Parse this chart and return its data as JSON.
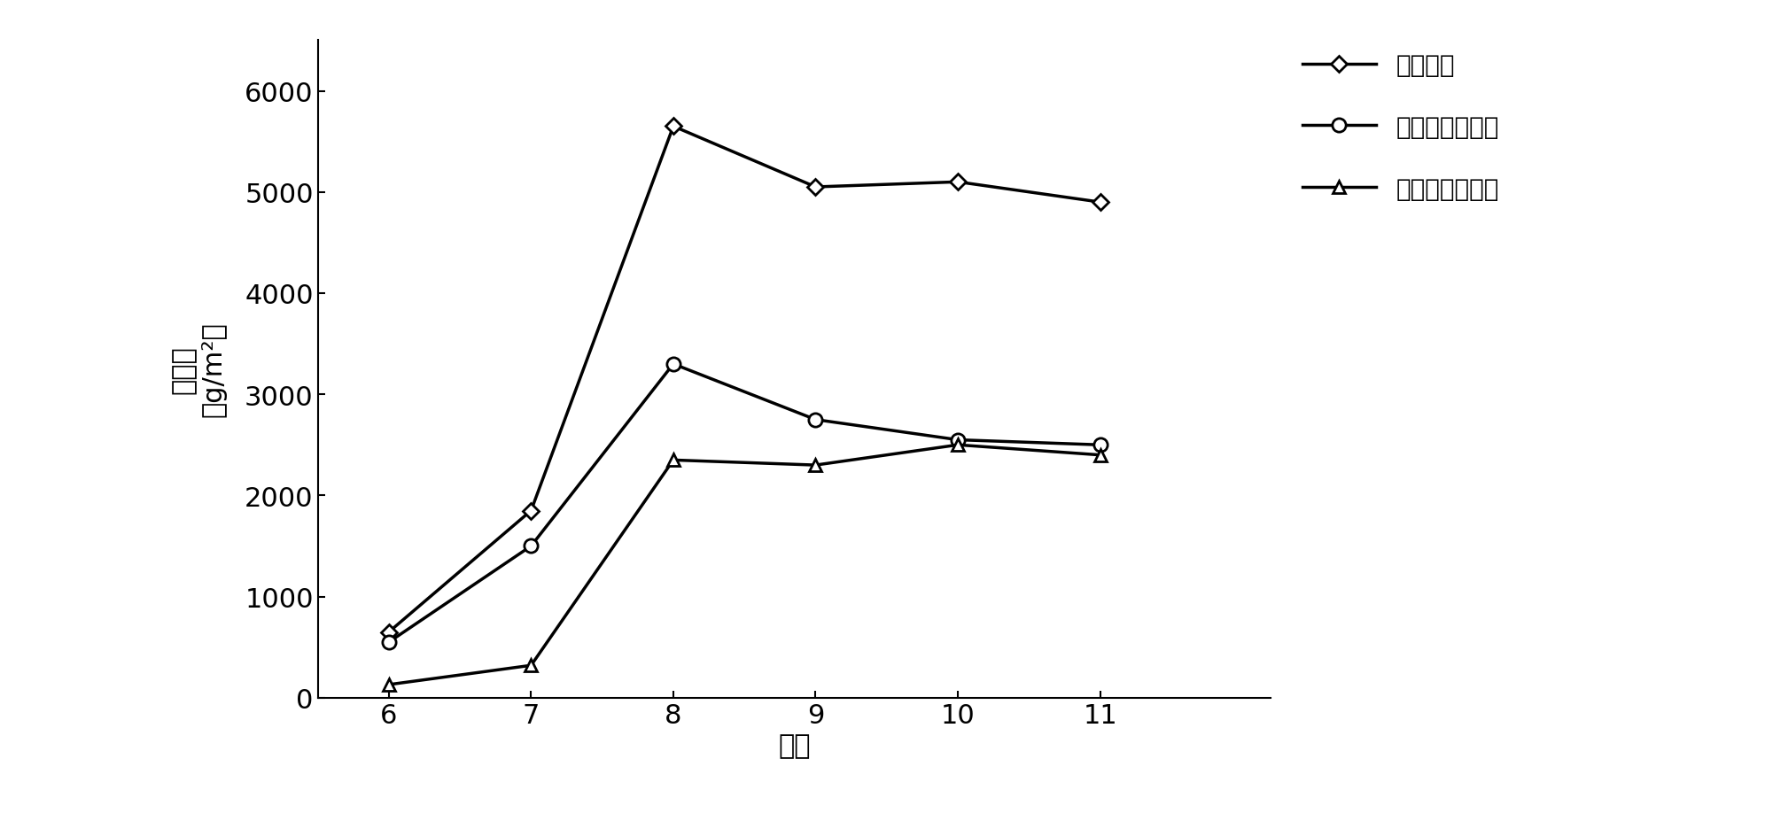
{
  "months": [
    6,
    7,
    8,
    9,
    10,
    11
  ],
  "total_biomass": [
    650,
    1850,
    5650,
    5050,
    5100,
    4900
  ],
  "above_ground": [
    550,
    1500,
    3300,
    2750,
    2550,
    2500
  ],
  "below_ground": [
    130,
    320,
    2350,
    2300,
    2500,
    2400
  ],
  "xlabel": "月份",
  "ylabel_line1": "生物量",
  "ylabel_line2": "（g/m²）",
  "legend_total": "总生物量",
  "legend_above": "地上部分生物量",
  "legend_below": "地下部分生物量",
  "ylim": [
    0,
    6500
  ],
  "xlim": [
    5.5,
    12.2
  ],
  "yticks": [
    0,
    1000,
    2000,
    3000,
    4000,
    5000,
    6000
  ],
  "xticks": [
    6,
    7,
    8,
    9,
    10,
    11
  ],
  "line_color": "#000000",
  "background_color": "#ffffff",
  "label_fontsize": 22,
  "tick_fontsize": 22,
  "legend_fontsize": 20
}
